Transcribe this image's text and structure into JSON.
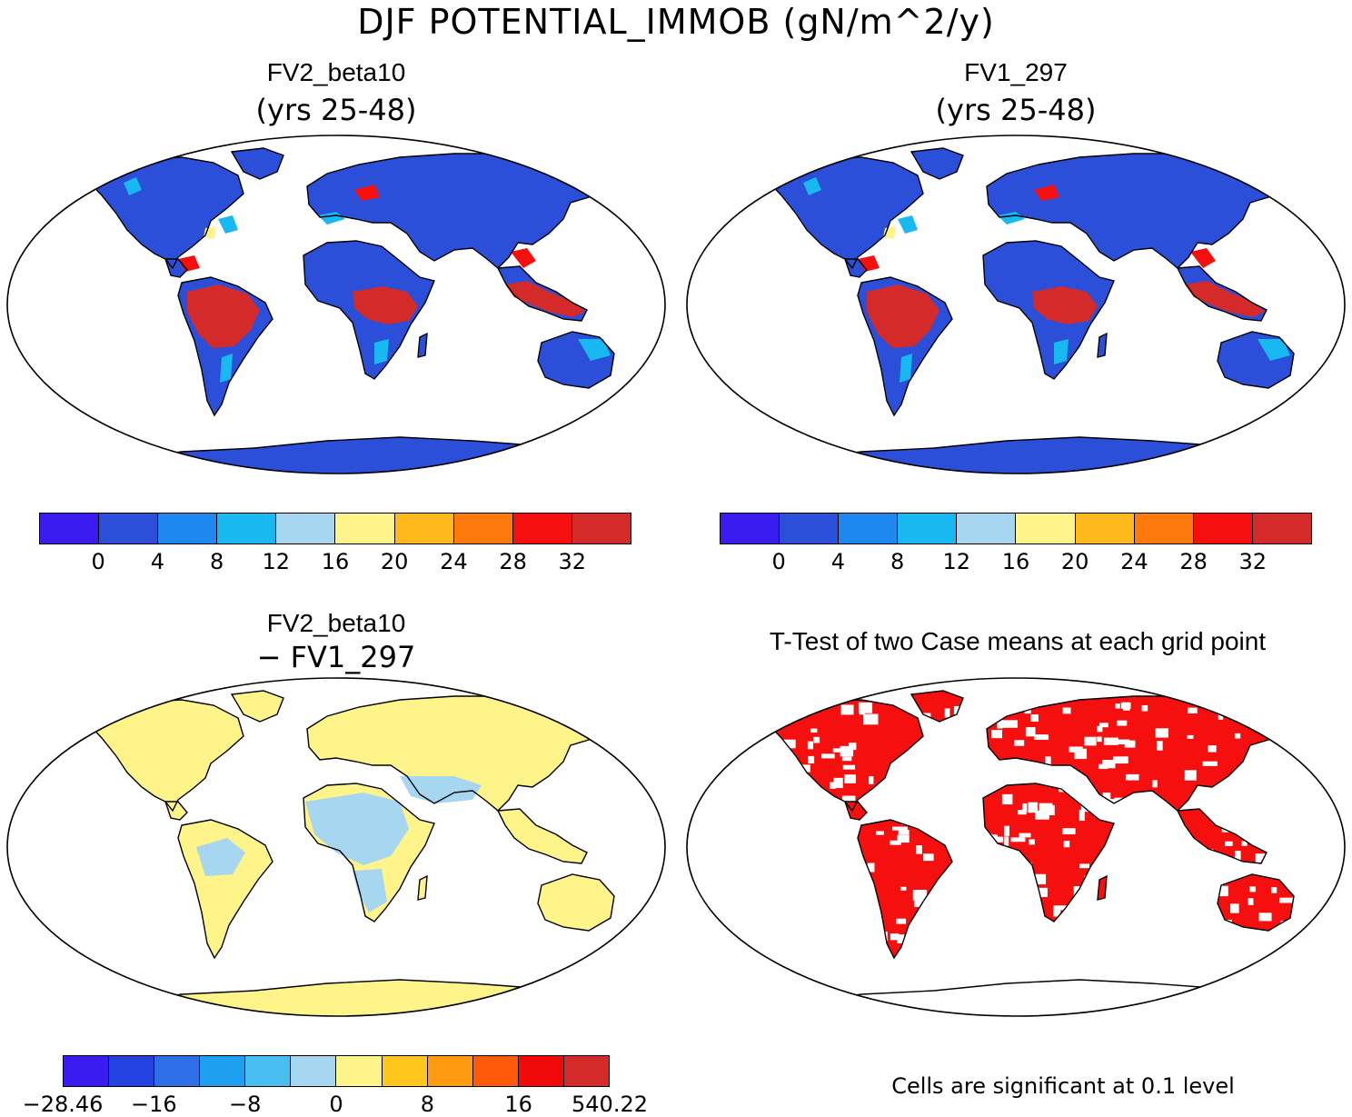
{
  "title": "DJF POTENTIAL_IMMOB (gN/m^2/y)",
  "panels": {
    "top_left": {
      "title": "FV2_beta10",
      "subtitle": "(yrs 25-48)"
    },
    "top_right": {
      "title": "FV1_297",
      "subtitle": "(yrs 25-48)"
    },
    "bottom_left": {
      "title": "FV2_beta10",
      "subtitle": "− FV1_297"
    },
    "bottom_right": {
      "title": "T-Test of two Case means at each grid point"
    }
  },
  "colorbar_top": {
    "colors": [
      "#3a1cf0",
      "#2b4fd8",
      "#1e88f0",
      "#18b8f0",
      "#a6d6f0",
      "#fff48a",
      "#ffb91a",
      "#ff7a0c",
      "#f50f0f",
      "#d42a2a"
    ],
    "ticks": [
      "0",
      "4",
      "8",
      "12",
      "16",
      "20",
      "24",
      "28",
      "32"
    ]
  },
  "colorbar_diff": {
    "colors": [
      "#3a1cf0",
      "#2342e0",
      "#2e6fe8",
      "#1ea0f0",
      "#48bff0",
      "#a6d6f0",
      "#fff48a",
      "#ffc61e",
      "#ff9a10",
      "#ff5a0a",
      "#f00a0a",
      "#d42a2a"
    ],
    "ticks": [
      "−28.46",
      "−16",
      "−8",
      "0",
      "8",
      "16",
      "540.22"
    ]
  },
  "ttest_note": "Cells are significant at 0.1 level",
  "map_colors": {
    "ocean": "#ffffff",
    "land_low": "#2b4fd8",
    "tropics_high": "#d42a2a",
    "tropics_mid": "#f50f0f",
    "coast_light": "#18b8f0",
    "coast_yellow": "#fff48a",
    "diff_land": "#fff48a",
    "diff_light": "#a6d6f0",
    "significant": "#f50f0f"
  }
}
